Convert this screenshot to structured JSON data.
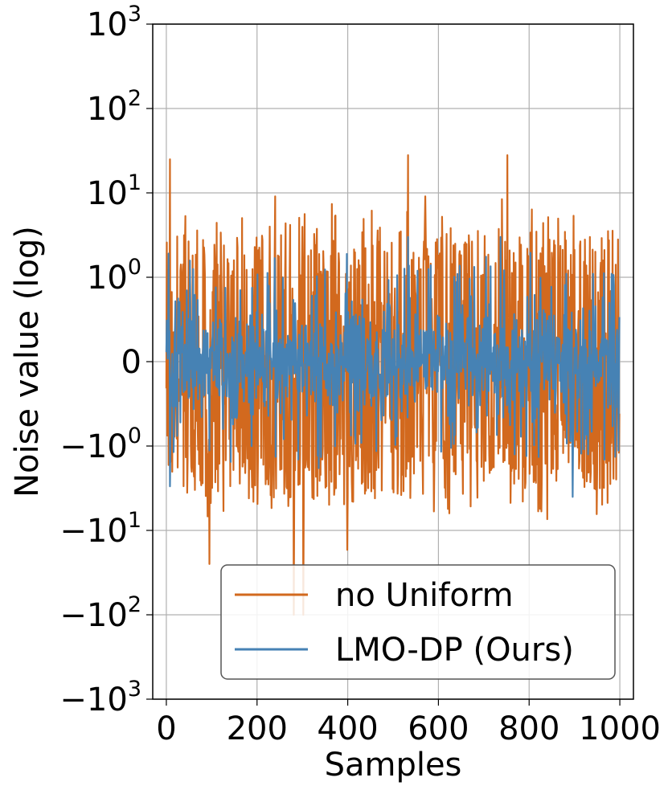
{
  "chart_data": {
    "type": "line",
    "xlabel": "Samples",
    "ylabel": "Noise value (log)",
    "xlim": [
      -30,
      1030
    ],
    "ylim": [
      -1000,
      1000
    ],
    "yscale": "symlog",
    "linthresh": 1,
    "grid": true,
    "legend_position": "lower-right",
    "x_ticks": [
      {
        "value": 0,
        "label": "0"
      },
      {
        "value": 200,
        "label": "200"
      },
      {
        "value": 400,
        "label": "400"
      },
      {
        "value": 600,
        "label": "600"
      },
      {
        "value": 800,
        "label": "800"
      },
      {
        "value": 1000,
        "label": "1000"
      }
    ],
    "y_ticks": [
      {
        "value": 1000,
        "base": "10",
        "exp": "3"
      },
      {
        "value": 100,
        "base": "10",
        "exp": "2"
      },
      {
        "value": 10,
        "base": "10",
        "exp": "1"
      },
      {
        "value": 1,
        "base": "10",
        "exp": "0"
      },
      {
        "value": 0,
        "base": "0",
        "exp": ""
      },
      {
        "value": -1,
        "base": "−10",
        "exp": "0"
      },
      {
        "value": -10,
        "base": "−10",
        "exp": "1"
      },
      {
        "value": -100,
        "base": "−10",
        "exp": "2"
      },
      {
        "value": -1000,
        "base": "−10",
        "exp": "3"
      }
    ],
    "series": [
      {
        "name": "no Uniform",
        "color": "#d2691e",
        "samples": 1000,
        "approx_abs_range_typical": [
          0,
          7
        ],
        "peaks": [
          {
            "x": 8,
            "y": 25
          },
          {
            "x": 95,
            "y": 14
          },
          {
            "x": 533,
            "y": 28
          },
          {
            "x": 752,
            "y": 28
          },
          {
            "x": 95,
            "y": -25
          },
          {
            "x": 281,
            "y": -100
          },
          {
            "x": 302,
            "y": -100
          },
          {
            "x": 399,
            "y": -17
          }
        ]
      },
      {
        "name": "LMO-DP (Ours)",
        "color": "#4682b4",
        "samples": 1000,
        "approx_abs_range_typical": [
          0,
          1.5
        ],
        "peaks": [
          {
            "x": 8,
            "y": 2.8
          },
          {
            "x": 533,
            "y": 3
          },
          {
            "x": 737,
            "y": 3
          },
          {
            "x": 8,
            "y": -3
          },
          {
            "x": 896,
            "y": -4
          }
        ]
      }
    ]
  }
}
